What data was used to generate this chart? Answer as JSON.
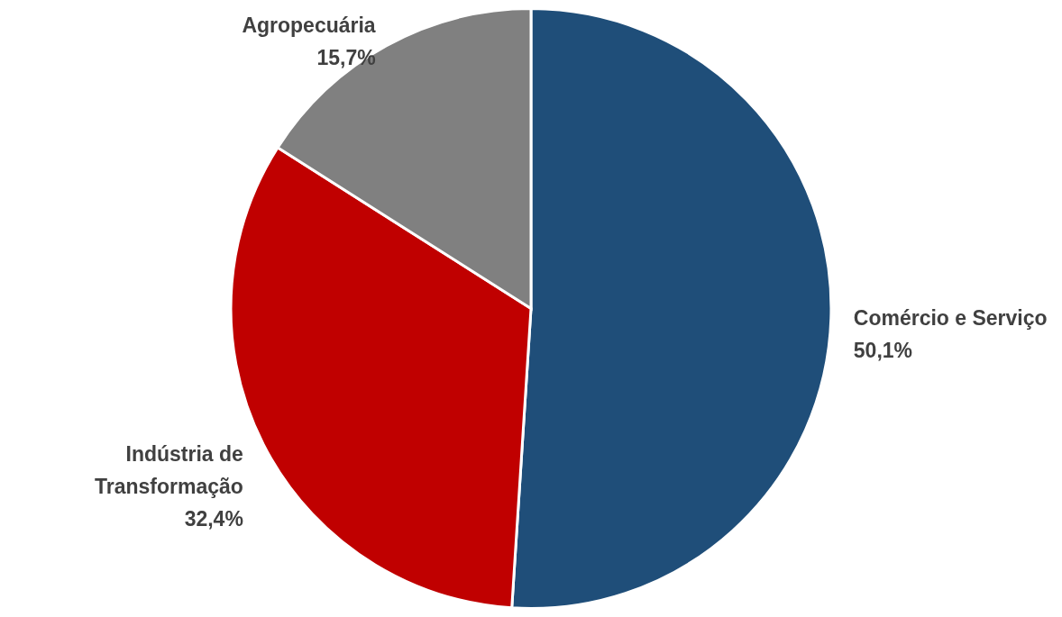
{
  "chart_data": {
    "type": "pie",
    "categories": [
      "Comércio e Serviço",
      "Indústria de Transformação",
      "Agropecuária"
    ],
    "values": [
      50.1,
      32.4,
      15.7
    ],
    "colors": [
      "#1f4e79",
      "#c00000",
      "#808080"
    ],
    "value_labels": [
      "50,1%",
      "32,4%",
      "15,7%"
    ]
  }
}
